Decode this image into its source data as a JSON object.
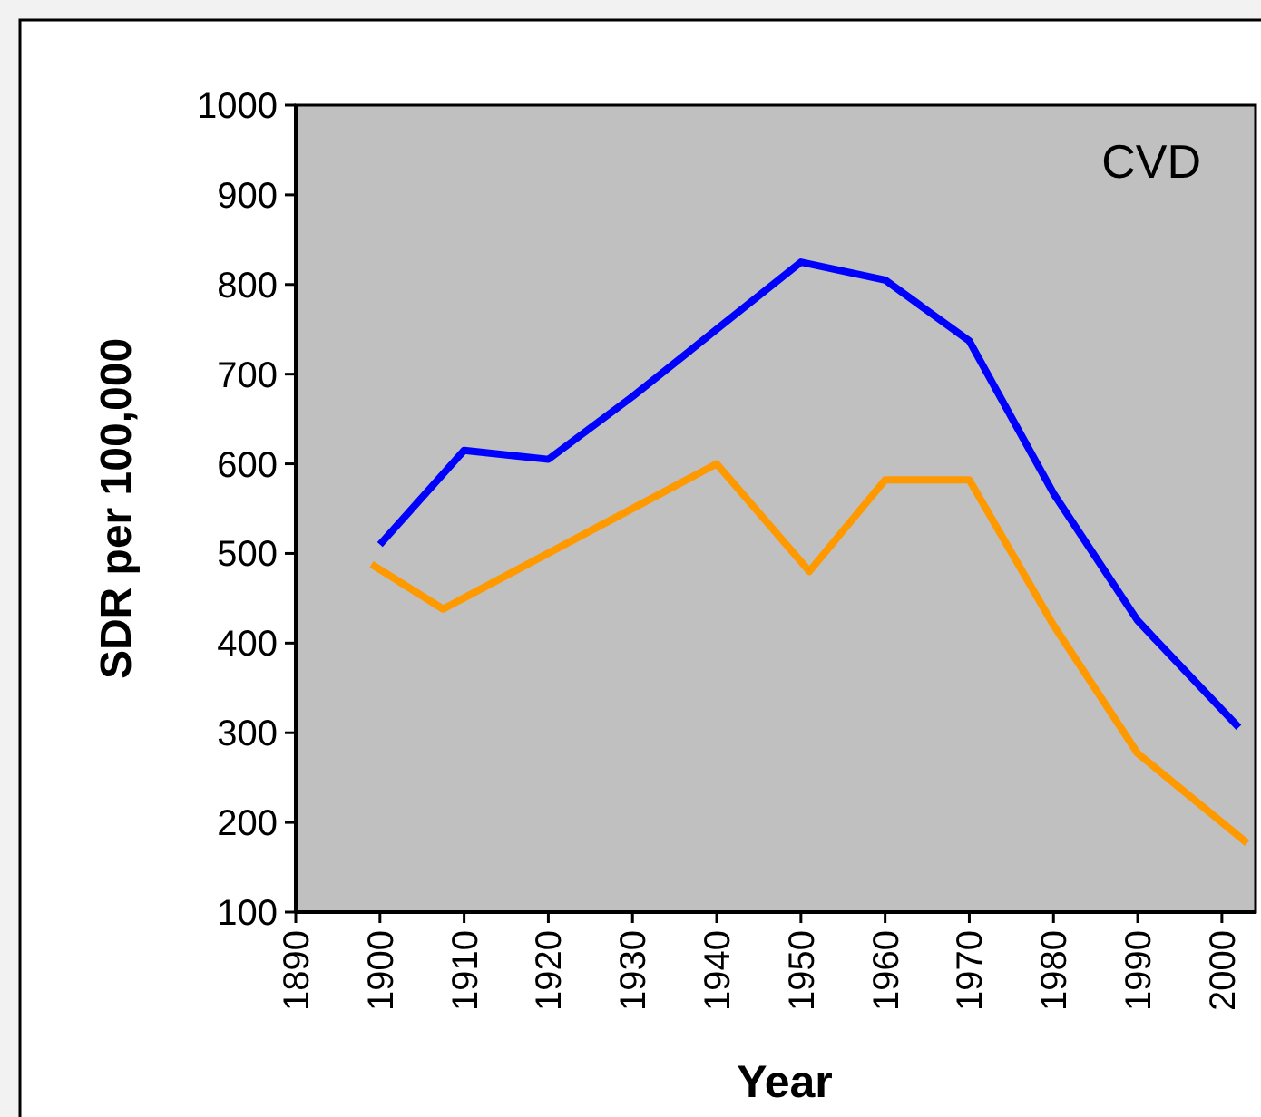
{
  "chart_data": {
    "type": "line",
    "xlabel": "Year",
    "ylabel": "SDR per 100,000",
    "annotations": [
      "CVD"
    ],
    "xlim": [
      1890,
      2004
    ],
    "xticks": [
      1890,
      1900,
      1910,
      1920,
      1930,
      1940,
      1950,
      1960,
      1970,
      1980,
      1990,
      2000
    ],
    "ylim": [
      100,
      1000
    ],
    "yticks": [
      100,
      200,
      300,
      400,
      500,
      600,
      700,
      800,
      900,
      1000
    ],
    "grid": false,
    "series": [
      {
        "color": "#0000ff",
        "x": [
          1900,
          1910,
          1920,
          1930,
          1940,
          1950,
          1960,
          1970,
          1980,
          1990,
          2002
        ],
        "values": [
          510,
          615,
          605,
          675,
          750,
          825,
          805,
          737,
          567,
          425,
          306
        ]
      },
      {
        "color": "#ff9900",
        "x": [
          1899,
          1907.5,
          1940,
          1951,
          1960,
          1970,
          1980,
          1990,
          2003
        ],
        "values": [
          488,
          438,
          600,
          480,
          582,
          582,
          420,
          277,
          177
        ]
      }
    ]
  }
}
